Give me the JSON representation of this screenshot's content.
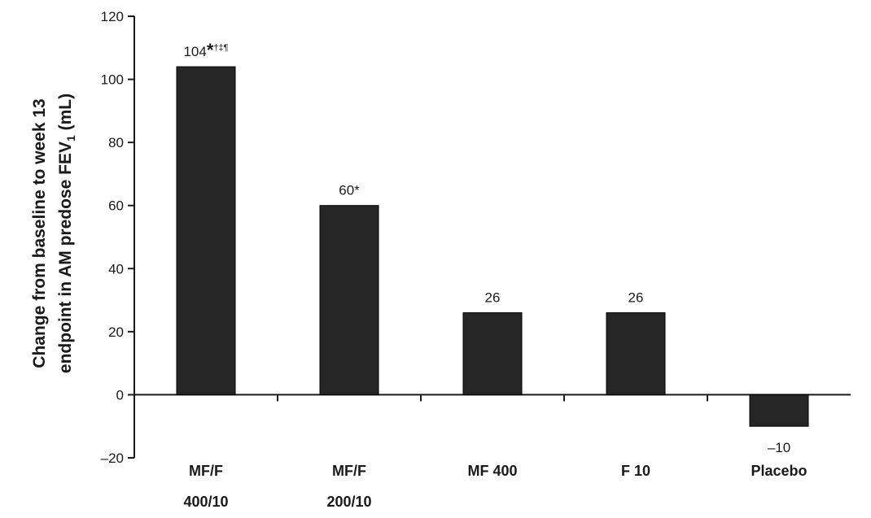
{
  "chart_data": {
    "type": "bar",
    "categories": [
      [
        "MF/F",
        "400/10"
      ],
      [
        "MF/F",
        "200/10"
      ],
      [
        "MF 400"
      ],
      [
        "F 10"
      ],
      [
        "Placebo"
      ]
    ],
    "values": [
      104,
      60,
      26,
      26,
      -10
    ],
    "data_labels": [
      {
        "value": "104",
        "mark": "*",
        "sup": "†‡¶"
      },
      {
        "value": "60*",
        "mark": "",
        "sup": ""
      },
      {
        "value": "26",
        "mark": "",
        "sup": ""
      },
      {
        "value": "26",
        "mark": "",
        "sup": ""
      },
      {
        "value": "–10",
        "mark": "",
        "sup": ""
      }
    ],
    "ylabel_line1": "Change from baseline to week 13",
    "ylabel_line2_main": "endpoint in AM predose FEV",
    "ylabel_line2_sub": "1",
    "ylabel_line2_unit": " (mL)",
    "ylim": [
      -20,
      120
    ],
    "yticks": [
      -20,
      0,
      20,
      40,
      60,
      80,
      100,
      120
    ],
    "ytick_labels": [
      "–20",
      "0",
      "20",
      "40",
      "60",
      "80",
      "100",
      "120"
    ],
    "bar_color": "#262626",
    "grid": false
  }
}
